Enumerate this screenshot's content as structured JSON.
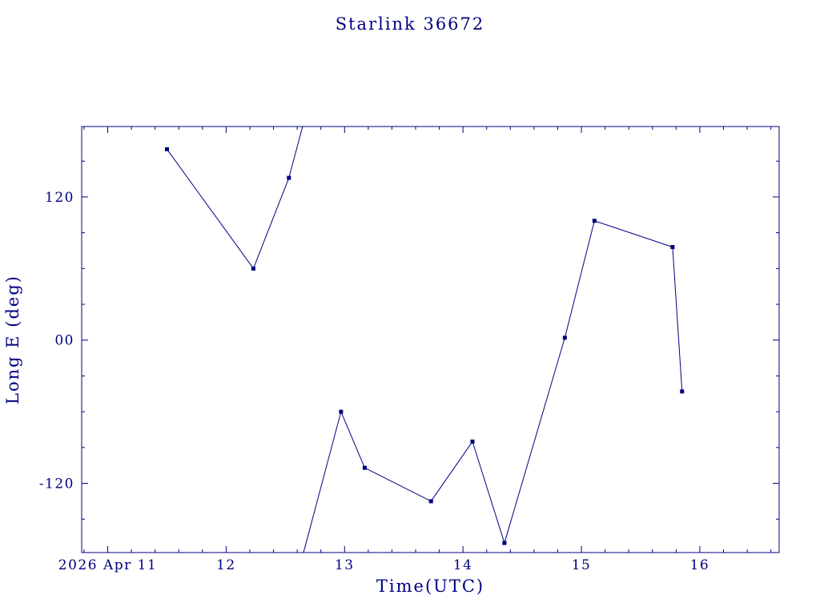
{
  "page": {
    "background": "#ffffff"
  },
  "chart_data": {
    "type": "line",
    "title": "Starlink 36672",
    "xlabel": "Time(UTC)",
    "ylabel": "Long E (deg)",
    "line_color": "#000080",
    "marker": "filled-square",
    "grid": false,
    "legend": "none",
    "xlim": [
      10.78,
      16.67
    ],
    "ylim": [
      -178,
      179
    ],
    "wrap_degrees": 360,
    "x_minor_step": 0.2,
    "y_minor_step": 30,
    "x_major_ticks": [
      {
        "value": 11,
        "label": "2026 Apr 11"
      },
      {
        "value": 12,
        "label": "12"
      },
      {
        "value": 13,
        "label": "13"
      },
      {
        "value": 14,
        "label": "14"
      },
      {
        "value": 15,
        "label": "15"
      },
      {
        "value": 16,
        "label": "16"
      }
    ],
    "y_major_ticks": [
      {
        "value": 120,
        "label": "120"
      },
      {
        "value": 0,
        "label": "00"
      },
      {
        "value": -120,
        "label": "-120"
      }
    ],
    "series": [
      {
        "name": "Starlink 36672",
        "x": [
          11.5,
          12.23,
          12.53,
          12.97,
          13.17,
          13.73,
          14.08,
          14.35,
          14.86,
          15.11,
          15.77,
          15.85
        ],
        "y": [
          160,
          60,
          136,
          -60,
          -107,
          -135,
          -85,
          -170,
          2,
          100,
          78,
          -43
        ]
      }
    ]
  }
}
